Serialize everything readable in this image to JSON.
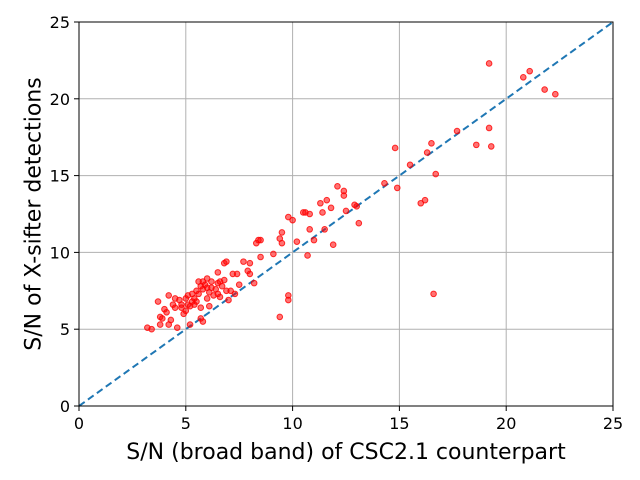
{
  "chart_data": {
    "type": "scatter",
    "title": "",
    "xlabel": "S/N (broad band) of CSC2.1 counterpart",
    "ylabel": "S/N of X-sifter detections",
    "xlim": [
      0,
      25
    ],
    "ylim": [
      0,
      25
    ],
    "xticks": [
      0,
      5,
      10,
      15,
      20,
      25
    ],
    "yticks": [
      0,
      5,
      10,
      15,
      20,
      25
    ],
    "grid": true,
    "colors": {
      "points": "#ff0000",
      "reference_line": "#1f77b4"
    },
    "reference_line": {
      "style": "dashed",
      "x": [
        0,
        25
      ],
      "y": [
        0,
        25
      ]
    },
    "series": [
      {
        "points": [
          [
            3.2,
            5.1
          ],
          [
            3.4,
            5.0
          ],
          [
            3.7,
            6.8
          ],
          [
            3.8,
            5.8
          ],
          [
            3.8,
            5.3
          ],
          [
            3.9,
            5.7
          ],
          [
            4.0,
            6.3
          ],
          [
            4.1,
            6.1
          ],
          [
            4.2,
            5.3
          ],
          [
            4.2,
            7.2
          ],
          [
            4.3,
            5.6
          ],
          [
            4.4,
            6.6
          ],
          [
            4.5,
            6.4
          ],
          [
            4.5,
            7.0
          ],
          [
            4.6,
            5.1
          ],
          [
            4.7,
            6.9
          ],
          [
            4.8,
            6.4
          ],
          [
            4.8,
            6.6
          ],
          [
            4.9,
            6.0
          ],
          [
            5.0,
            7.0
          ],
          [
            5.0,
            6.2
          ],
          [
            5.1,
            6.6
          ],
          [
            5.1,
            7.2
          ],
          [
            5.2,
            5.3
          ],
          [
            5.2,
            6.5
          ],
          [
            5.3,
            6.8
          ],
          [
            5.3,
            7.3
          ],
          [
            5.4,
            6.6
          ],
          [
            5.4,
            7.0
          ],
          [
            5.5,
            7.5
          ],
          [
            5.5,
            6.8
          ],
          [
            5.6,
            8.1
          ],
          [
            5.6,
            7.3
          ],
          [
            5.7,
            7.8
          ],
          [
            5.7,
            6.4
          ],
          [
            5.7,
            5.7
          ],
          [
            5.8,
            7.6
          ],
          [
            5.8,
            8.1
          ],
          [
            5.8,
            5.5
          ],
          [
            5.9,
            7.9
          ],
          [
            6.0,
            7.7
          ],
          [
            6.0,
            7.0
          ],
          [
            6.0,
            8.3
          ],
          [
            6.1,
            7.4
          ],
          [
            6.1,
            6.5
          ],
          [
            6.2,
            7.7
          ],
          [
            6.2,
            8.1
          ],
          [
            6.3,
            7.2
          ],
          [
            6.4,
            7.6
          ],
          [
            6.5,
            8.0
          ],
          [
            6.5,
            7.3
          ],
          [
            6.5,
            8.7
          ],
          [
            6.6,
            7.1
          ],
          [
            6.6,
            8.1
          ],
          [
            6.7,
            7.8
          ],
          [
            6.8,
            9.3
          ],
          [
            6.8,
            8.2
          ],
          [
            6.9,
            9.4
          ],
          [
            6.9,
            7.5
          ],
          [
            7.0,
            6.9
          ],
          [
            7.1,
            7.5
          ],
          [
            7.2,
            8.6
          ],
          [
            7.3,
            7.3
          ],
          [
            7.4,
            8.6
          ],
          [
            7.5,
            7.9
          ],
          [
            7.7,
            9.4
          ],
          [
            7.9,
            8.8
          ],
          [
            8.0,
            9.3
          ],
          [
            8.0,
            8.6
          ],
          [
            8.2,
            8.0
          ],
          [
            8.3,
            10.6
          ],
          [
            8.4,
            10.8
          ],
          [
            8.5,
            10.8
          ],
          [
            8.5,
            9.7
          ],
          [
            9.1,
            9.9
          ],
          [
            9.4,
            5.8
          ],
          [
            9.4,
            10.9
          ],
          [
            9.5,
            11.3
          ],
          [
            9.5,
            10.6
          ],
          [
            9.8,
            12.3
          ],
          [
            9.8,
            7.2
          ],
          [
            9.8,
            6.9
          ],
          [
            10.0,
            12.1
          ],
          [
            10.2,
            10.7
          ],
          [
            10.5,
            12.6
          ],
          [
            10.6,
            12.6
          ],
          [
            10.7,
            9.8
          ],
          [
            10.8,
            12.5
          ],
          [
            10.8,
            11.5
          ],
          [
            11.0,
            10.8
          ],
          [
            11.3,
            13.2
          ],
          [
            11.4,
            12.6
          ],
          [
            11.5,
            11.5
          ],
          [
            11.6,
            13.4
          ],
          [
            11.8,
            12.9
          ],
          [
            11.9,
            10.5
          ],
          [
            12.1,
            14.3
          ],
          [
            12.4,
            14.0
          ],
          [
            12.4,
            13.7
          ],
          [
            12.5,
            12.7
          ],
          [
            12.9,
            13.1
          ],
          [
            13.0,
            13.0
          ],
          [
            13.1,
            11.9
          ],
          [
            14.3,
            14.5
          ],
          [
            14.8,
            16.8
          ],
          [
            14.9,
            14.2
          ],
          [
            15.5,
            15.7
          ],
          [
            16.0,
            13.2
          ],
          [
            16.2,
            13.4
          ],
          [
            16.3,
            16.5
          ],
          [
            16.5,
            17.1
          ],
          [
            16.6,
            7.3
          ],
          [
            16.7,
            15.1
          ],
          [
            17.7,
            17.9
          ],
          [
            18.6,
            17.0
          ],
          [
            19.2,
            22.3
          ],
          [
            19.2,
            18.1
          ],
          [
            19.3,
            16.9
          ],
          [
            20.8,
            21.4
          ],
          [
            21.1,
            21.8
          ],
          [
            21.8,
            20.6
          ],
          [
            22.3,
            20.3
          ]
        ]
      }
    ]
  }
}
